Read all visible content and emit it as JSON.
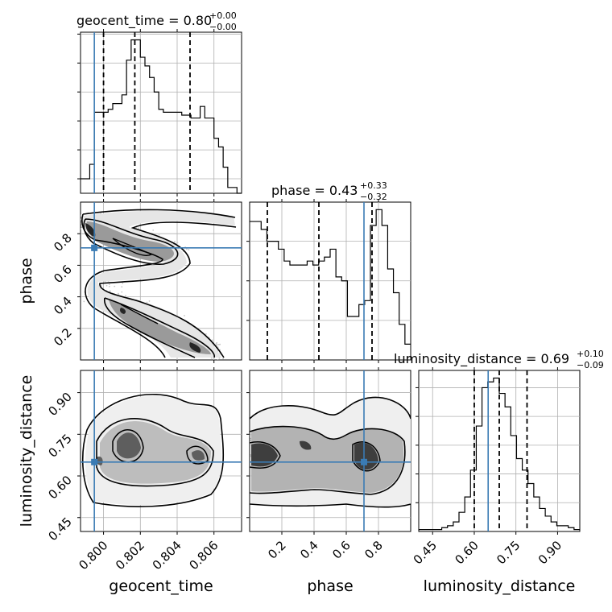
{
  "chart_data": {
    "type": "corner",
    "parameters": [
      "geocent_time",
      "phase",
      "luminosity_distance"
    ],
    "truths": [
      0.7995,
      0.71,
      0.65
    ],
    "truth_color": "#3a7bb4",
    "hist_color": "#000000",
    "ranges": [
      [
        0.79875,
        0.8075
      ],
      [
        0.0,
        1.0
      ],
      [
        0.4,
        0.98
      ]
    ],
    "ticks": [
      [
        0.8,
        0.802,
        0.804,
        0.806
      ],
      [
        0.2,
        0.4,
        0.6,
        0.8
      ],
      [
        0.45,
        0.6,
        0.75,
        0.9
      ]
    ],
    "tick_labels": [
      [
        "0.800",
        "0.802",
        "0.804",
        "0.806"
      ],
      [
        "0.2",
        "0.4",
        "0.6",
        "0.8"
      ],
      [
        "0.45",
        "0.60",
        "0.75",
        "0.90"
      ]
    ],
    "titles": [
      {
        "text": "geocent_time = 0.80",
        "sup": "+0.00",
        "sub": "−0.00"
      },
      {
        "text": "phase = 0.43",
        "sup": "+0.33",
        "sub": "−0.32"
      },
      {
        "text": "luminosity_distance = 0.69",
        "sup": "+0.10",
        "sub": "−0.09"
      }
    ],
    "quantiles": [
      [
        0.8,
        0.8017,
        0.8047
      ],
      [
        0.11,
        0.43,
        0.76
      ],
      [
        0.6,
        0.69,
        0.79
      ]
    ],
    "histograms": [
      {
        "counts": [
          5,
          5,
          10,
          28,
          28,
          28,
          29,
          31,
          31,
          34,
          46,
          53,
          53,
          47,
          44,
          40,
          35,
          29,
          28,
          28,
          28,
          28,
          27,
          27,
          26,
          26,
          30,
          26,
          26,
          19,
          16,
          9,
          2,
          2,
          0
        ]
      },
      {
        "counts": [
          35,
          35,
          33,
          30,
          30,
          28,
          25,
          24,
          24,
          24,
          25,
          24,
          25,
          26,
          28,
          21,
          20,
          11,
          11,
          14,
          15,
          34,
          38,
          34,
          23,
          17,
          9,
          4
        ]
      },
      {
        "counts": [
          1,
          1,
          1,
          1,
          2,
          3,
          5,
          10,
          18,
          32,
          55,
          75,
          78,
          80,
          72,
          65,
          50,
          38,
          32,
          25,
          18,
          12,
          8,
          5,
          3,
          3,
          2,
          1
        ]
      }
    ],
    "grid": true
  }
}
